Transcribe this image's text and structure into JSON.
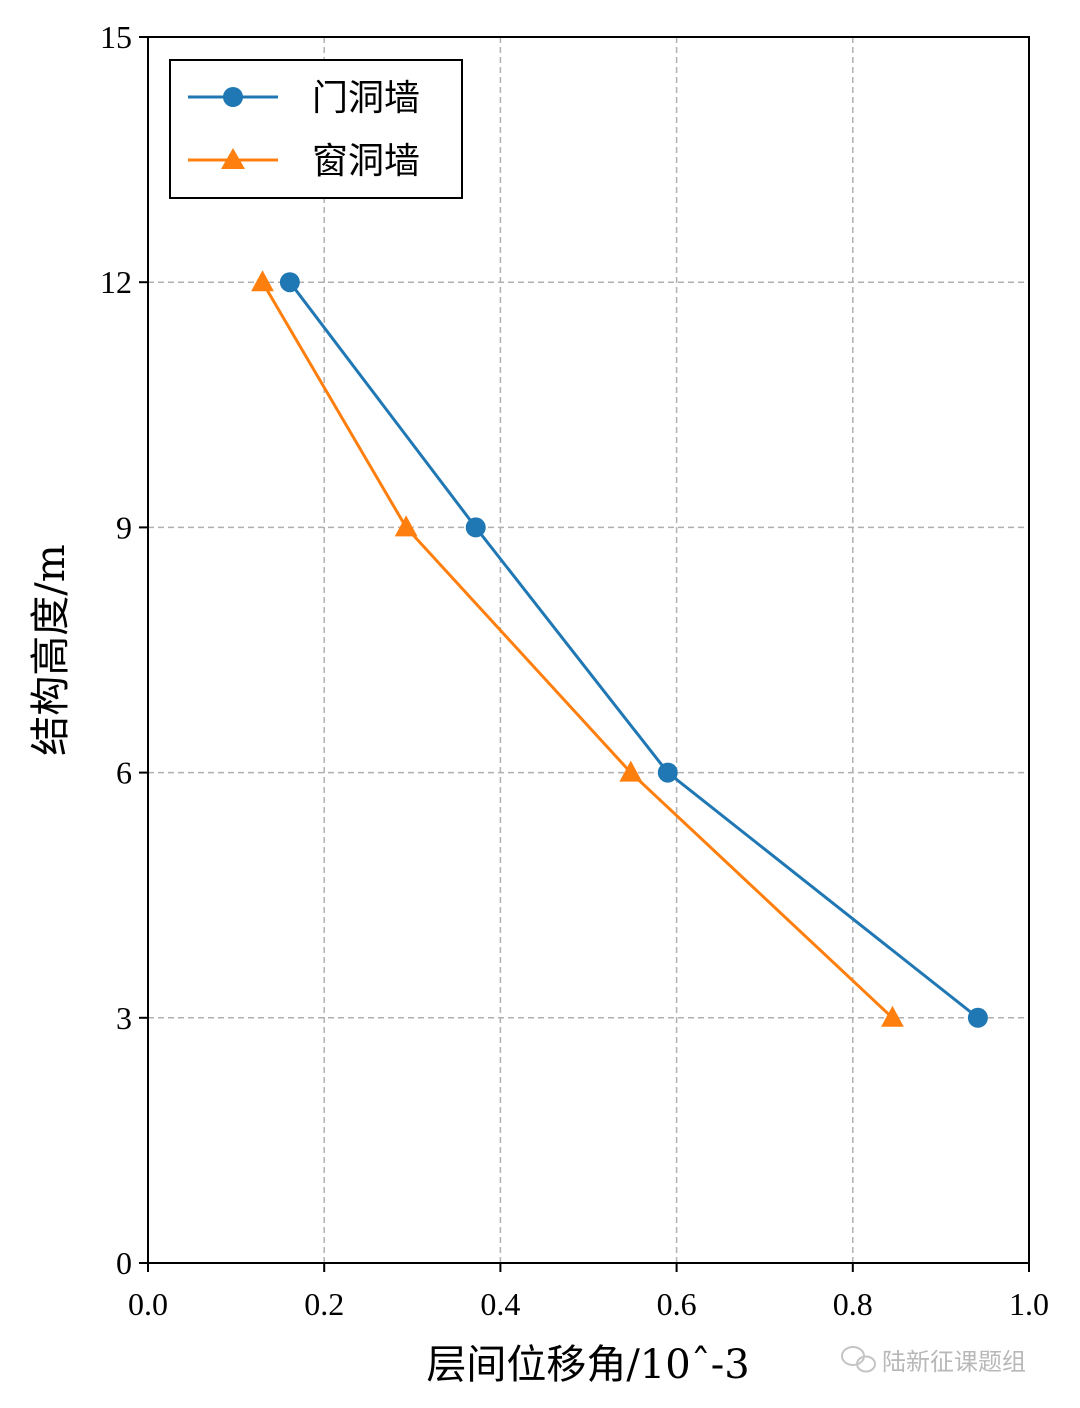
{
  "chart_data": {
    "type": "line",
    "xlabel": "层间位移角/10ˆ-3",
    "ylabel": "结构高度/m",
    "xlim": [
      0.0,
      1.0
    ],
    "ylim": [
      0,
      15
    ],
    "xticks": [
      "0.0",
      "0.2",
      "0.4",
      "0.6",
      "0.8",
      "1.0"
    ],
    "yticks": [
      "0",
      "3",
      "6",
      "9",
      "12",
      "15"
    ],
    "grid": true,
    "legend_position": "top-left",
    "series": [
      {
        "name": "门洞墙",
        "color": "#1f77b4",
        "marker": "circle",
        "points": [
          {
            "x": 0.942,
            "y": 3
          },
          {
            "x": 0.59,
            "y": 6
          },
          {
            "x": 0.372,
            "y": 9
          },
          {
            "x": 0.161,
            "y": 12
          }
        ]
      },
      {
        "name": "窗洞墙",
        "color": "#ff7f0e",
        "marker": "triangle",
        "points": [
          {
            "x": 0.845,
            "y": 3
          },
          {
            "x": 0.548,
            "y": 6
          },
          {
            "x": 0.293,
            "y": 9
          },
          {
            "x": 0.13,
            "y": 12
          }
        ]
      }
    ]
  },
  "watermark": {
    "text": "陆新征课题组",
    "icon": "wechat-icon"
  }
}
